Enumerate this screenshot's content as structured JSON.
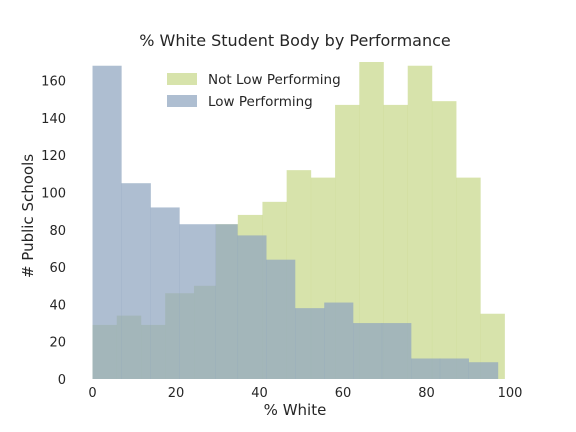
{
  "chart_data": {
    "type": "histogram",
    "title": "% White Student Body by Performance",
    "xlabel": "% White",
    "ylabel": "# Public Schools",
    "xlim": [
      -3,
      100
    ],
    "ylim": [
      0,
      170
    ],
    "xticks": [
      0,
      20,
      40,
      60,
      80,
      100
    ],
    "yticks": [
      0,
      20,
      40,
      60,
      80,
      100,
      120,
      140,
      160
    ],
    "grid": false,
    "legend_position": "top-center",
    "series": [
      {
        "name": "Not Low Performing",
        "color": "#c8d88a",
        "bin_edges": [
          0,
          5.8,
          11.6,
          17.4,
          24.3,
          29.5,
          34.8,
          40.7,
          46.5,
          52.3,
          58.1,
          63.9,
          69.7,
          75.5,
          81.3,
          87.1,
          92.9,
          98.7
        ],
        "counts": [
          29,
          34,
          29,
          46,
          50,
          83,
          88,
          95,
          112,
          108,
          147,
          170,
          147,
          168,
          149,
          108,
          35
        ]
      },
      {
        "name": "Low Performing",
        "color": "#8fa5bf",
        "bin_edges": [
          0,
          6.9,
          13.9,
          20.8,
          29.5,
          34.7,
          41.6,
          48.5,
          55.5,
          62.4,
          69.3,
          76.3,
          83.2,
          90.1,
          97.1
        ],
        "counts": [
          168,
          105,
          92,
          83,
          83,
          77,
          64,
          38,
          41,
          30,
          30,
          11,
          11,
          9
        ]
      }
    ]
  }
}
